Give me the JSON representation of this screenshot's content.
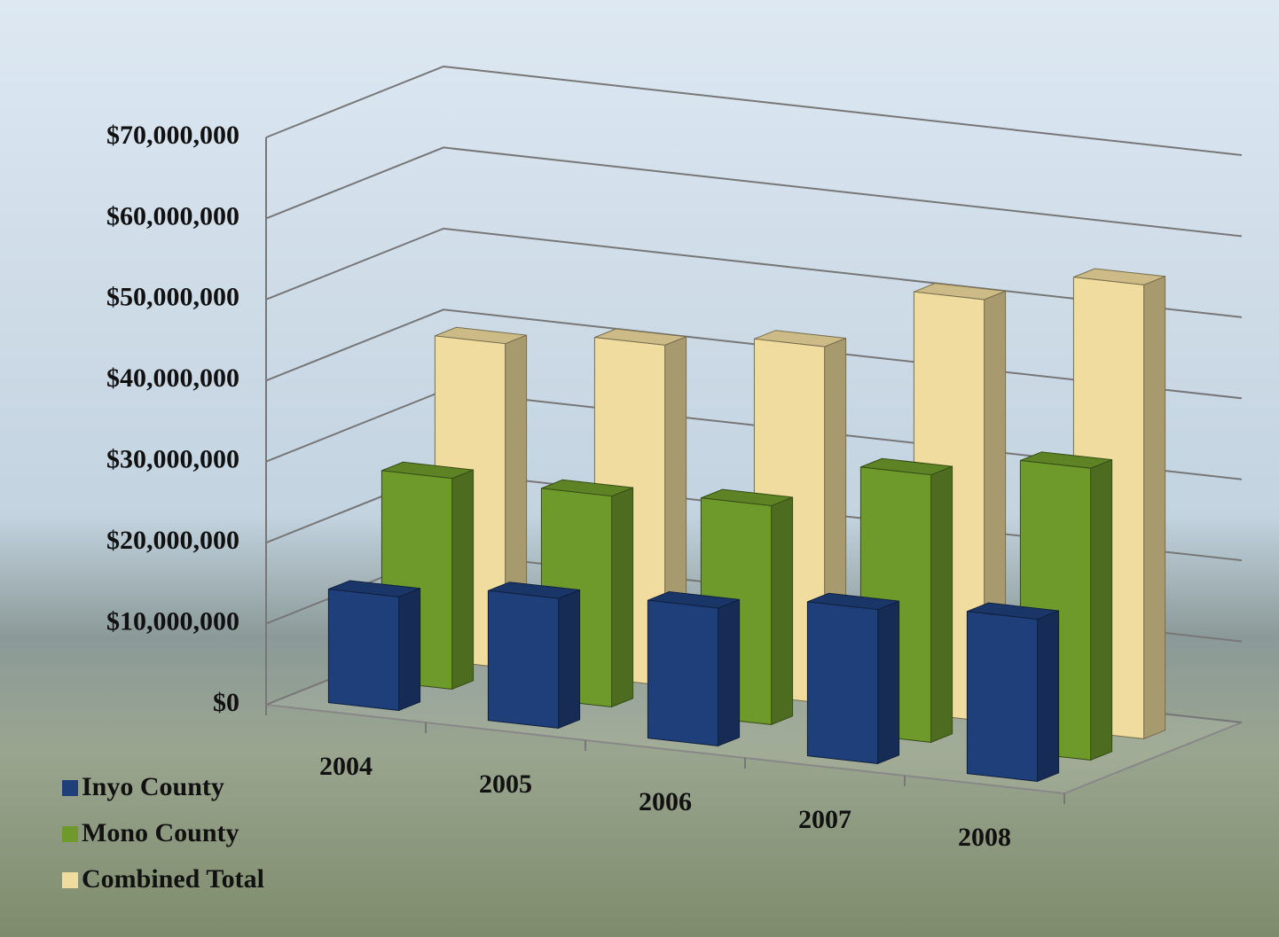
{
  "chart_data": {
    "type": "bar3d",
    "categories": [
      "2004",
      "2005",
      "2006",
      "2007",
      "2008"
    ],
    "series": [
      {
        "name": "Inyo County",
        "color": "#1f3f7a",
        "values": [
          14000000,
          16000000,
          17000000,
          19000000,
          20000000
        ]
      },
      {
        "name": "Mono County",
        "color": "#6e9a2c",
        "values": [
          26000000,
          26000000,
          27000000,
          33000000,
          36000000
        ]
      },
      {
        "name": "Combined Total",
        "color": "#f0dc9e",
        "values": [
          40000000,
          42000000,
          44000000,
          52000000,
          56000000
        ]
      }
    ],
    "ylim": [
      0,
      70000000
    ],
    "yticks": [
      {
        "value": 0,
        "label": "$0"
      },
      {
        "value": 10000000,
        "label": "$10,000,000"
      },
      {
        "value": 20000000,
        "label": "$20,000,000"
      },
      {
        "value": 30000000,
        "label": "$30,000,000"
      },
      {
        "value": 40000000,
        "label": "$40,000,000"
      },
      {
        "value": 50000000,
        "label": "$50,000,000"
      },
      {
        "value": 60000000,
        "label": "$60,000,000"
      },
      {
        "value": 70000000,
        "label": "$70,000,000"
      }
    ],
    "grid": true,
    "legend": "bottom-left"
  }
}
